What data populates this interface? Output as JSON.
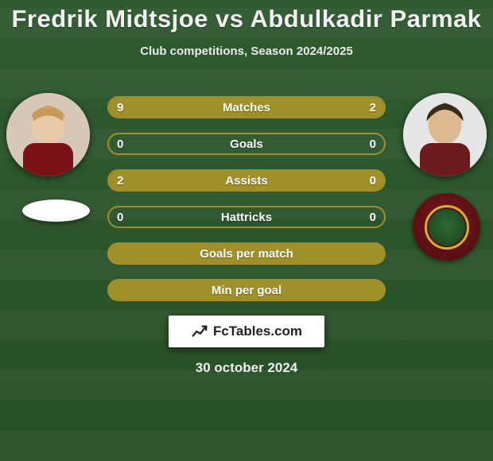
{
  "title": "Fredrik Midtsjoe vs Abdulkadir Parmak",
  "subtitle": "Club competitions, Season 2024/2025",
  "date": "30 october 2024",
  "brand": "FcTables.com",
  "colors": {
    "bar_border": "#a0902a",
    "bar_fill": "#a0902a",
    "bar_border_empty": "#a0902a",
    "text": "#ffffff"
  },
  "bars": [
    {
      "label": "Matches",
      "left": "9",
      "right": "2",
      "left_pct": 82,
      "right_pct": 18,
      "has_fill": true
    },
    {
      "label": "Goals",
      "left": "0",
      "right": "0",
      "left_pct": 50,
      "right_pct": 50,
      "has_fill": false
    },
    {
      "label": "Assists",
      "left": "2",
      "right": "0",
      "left_pct": 100,
      "right_pct": 0,
      "has_fill": true
    },
    {
      "label": "Hattricks",
      "left": "0",
      "right": "0",
      "left_pct": 50,
      "right_pct": 50,
      "has_fill": false
    },
    {
      "label": "Goals per match",
      "left": "",
      "right": "",
      "left_pct": 0,
      "right_pct": 0,
      "has_fill": true,
      "full": true
    },
    {
      "label": "Min per goal",
      "left": "",
      "right": "",
      "left_pct": 0,
      "right_pct": 0,
      "has_fill": true,
      "full": true
    }
  ],
  "players": {
    "left": {
      "name": "Fredrik Midtsjoe",
      "avatar_bg": "#d7c7b8",
      "hair": "#c79a5a",
      "skin": "#e8c9a8",
      "shirt": "#7a1216"
    },
    "right": {
      "name": "Abdulkadir Parmak",
      "avatar_bg": "#e6e6e6",
      "hair": "#3a2a1a",
      "skin": "#dcb98f",
      "shirt": "#6b1a1e"
    }
  },
  "clubs": {
    "right_crest_ring": "#d4af37",
    "right_crest_bg": "#7a1a1f",
    "right_crest_inner": "#2e6b33"
  }
}
